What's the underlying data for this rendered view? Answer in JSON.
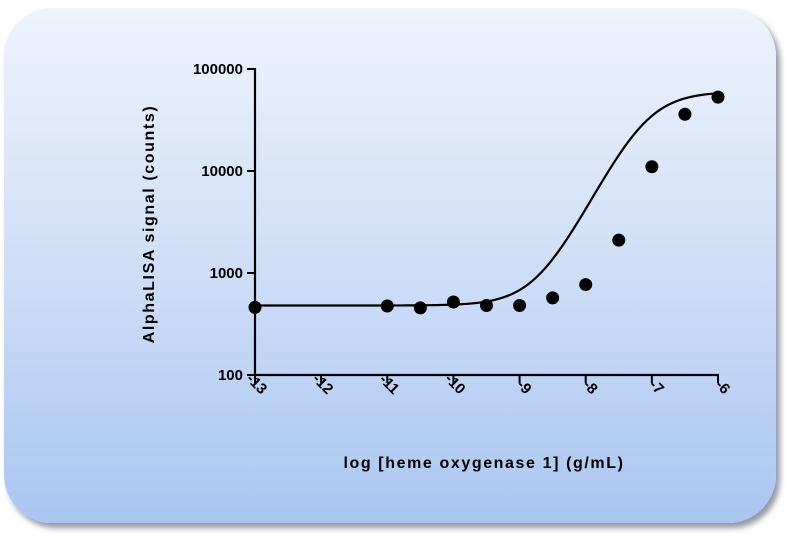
{
  "chart_data": {
    "type": "scatter",
    "title": "",
    "xlabel": "log [heme oxygenase 1] (g/mL)",
    "ylabel": "AlphaLISA signal (counts)",
    "x_ticks": [
      -13,
      -12,
      -11,
      -10,
      -9,
      -8,
      -7,
      -6
    ],
    "x_tick_labels": [
      "-13",
      "-12",
      "-11",
      "-10",
      "-9",
      "-8",
      "-7",
      "-6"
    ],
    "y_ticks": [
      100,
      1000,
      10000,
      100000
    ],
    "y_tick_labels": [
      "100",
      "1000",
      "10000",
      "100000"
    ],
    "xlim": [
      -13,
      -6
    ],
    "ylim": [
      100,
      100000
    ],
    "y_scale": "log",
    "grid": false,
    "series": [
      {
        "x": [
          -13,
          -11,
          -10.5,
          -10,
          -9.5,
          -9,
          -8.5,
          -8,
          -7.5,
          -7,
          -6.5,
          -6
        ],
        "y": [
          460,
          475,
          455,
          520,
          480,
          480,
          570,
          770,
          2100,
          11000,
          36000,
          53000
        ],
        "marker": "circle",
        "color": "#000000"
      }
    ],
    "fit_curve": {
      "model": "4-parameter logistic",
      "bottom": 480,
      "top": 60000,
      "log_ec50": -7.1,
      "hill_slope": 1.3,
      "color": "#000000"
    }
  },
  "colors": {
    "panel_top": "#eef3fc",
    "panel_bottom": "#a9c6f1",
    "ink": "#000000"
  }
}
